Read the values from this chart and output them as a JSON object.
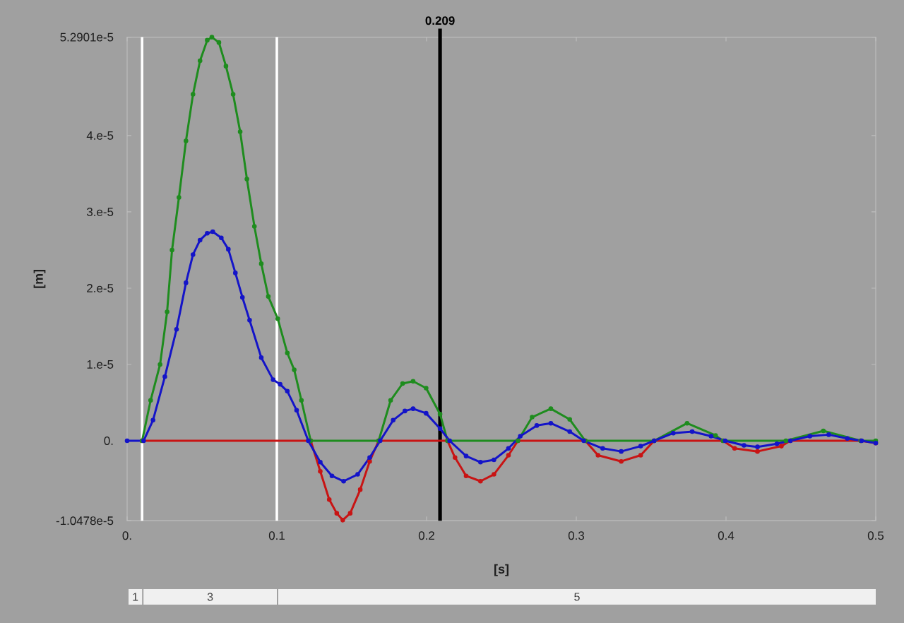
{
  "chart_data": {
    "type": "line",
    "xlabel": "[s]",
    "ylabel": "[m]",
    "xlim": [
      0,
      0.5
    ],
    "ylim": [
      -1.0478e-05,
      5.2901e-05
    ],
    "xticks": [
      {
        "value": 0,
        "label": "0."
      },
      0.1,
      0.2,
      0.3,
      0.4,
      0.5
    ],
    "yticks": [
      {
        "value": -1.0478e-05,
        "label": "-1.0478e-5"
      },
      {
        "value": 0,
        "label": "0."
      },
      {
        "value": 1e-05,
        "label": "1.e-5"
      },
      {
        "value": 2e-05,
        "label": "2.e-5"
      },
      {
        "value": 3e-05,
        "label": "3.e-5"
      },
      {
        "value": 4e-05,
        "label": "4.e-5"
      },
      {
        "value": 5.2901e-05,
        "label": "5.2901e-5"
      }
    ],
    "marker": "circle",
    "series": [
      {
        "color": "#c81414",
        "x": [
          0.01,
          0.1226,
          0.129,
          0.135,
          0.14,
          0.144,
          0.149,
          0.1557,
          0.162,
          0.168,
          0.214,
          0.219,
          0.2264,
          0.236,
          0.245,
          0.2547,
          0.261,
          0.306,
          0.3145,
          0.33,
          0.343,
          0.352,
          0.398,
          0.4057,
          0.421,
          0.437,
          0.443,
          0.49,
          0.5
        ],
        "values": [
          0,
          0,
          -4e-06,
          -7.7e-06,
          -9.5e-06,
          -1.04e-05,
          -9.5e-06,
          -6.4e-06,
          -2.7e-06,
          0,
          0,
          -2.2e-06,
          -4.6e-06,
          -5.3e-06,
          -4.4e-06,
          -1.9e-06,
          0,
          0,
          -1.9e-06,
          -2.7e-06,
          -1.9e-06,
          0,
          0,
          -1e-06,
          -1.4e-06,
          -7e-07,
          0,
          0,
          -3e-07
        ]
      },
      {
        "color": "#1e8c1e",
        "x": [
          0.01,
          0.0157,
          0.022,
          0.0267,
          0.03,
          0.0346,
          0.0393,
          0.044,
          0.0487,
          0.0535,
          0.0566,
          0.0613,
          0.066,
          0.0708,
          0.0755,
          0.08,
          0.085,
          0.0896,
          0.0943,
          0.1006,
          0.107,
          0.1116,
          0.1164,
          0.1226,
          0.168,
          0.176,
          0.184,
          0.191,
          0.1997,
          0.209,
          0.214,
          0.261,
          0.2705,
          0.283,
          0.2956,
          0.306,
          0.352,
          0.374,
          0.393,
          0.398,
          0.44,
          0.465,
          0.49,
          0.5
        ],
        "values": [
          0,
          5.3e-06,
          1e-05,
          1.69e-05,
          2.5e-05,
          3.19e-05,
          3.93e-05,
          4.54e-05,
          4.98e-05,
          5.25e-05,
          5.29e-05,
          5.22e-05,
          4.91e-05,
          4.54e-05,
          4.05e-05,
          3.43e-05,
          2.81e-05,
          2.32e-05,
          1.89e-05,
          1.6e-05,
          1.15e-05,
          9.3e-06,
          5.3e-06,
          0,
          0,
          5.3e-06,
          7.5e-06,
          7.8e-06,
          6.9e-06,
          3.5e-06,
          0,
          0,
          3.1e-06,
          4.2e-06,
          2.8e-06,
          0,
          0,
          2.3e-06,
          7e-07,
          0,
          0,
          1.3e-06,
          0,
          0
        ]
      },
      {
        "color": "#1414c8",
        "x": [
          0,
          0.011,
          0.0173,
          0.0252,
          0.033,
          0.0393,
          0.044,
          0.0487,
          0.0535,
          0.0572,
          0.0629,
          0.0676,
          0.0723,
          0.077,
          0.0818,
          0.0896,
          0.0975,
          0.1022,
          0.107,
          0.1132,
          0.121,
          0.129,
          0.1368,
          0.1446,
          0.154,
          0.162,
          0.169,
          0.1777,
          0.1855,
          0.191,
          0.1997,
          0.209,
          0.2154,
          0.2264,
          0.236,
          0.245,
          0.2547,
          0.2626,
          0.2736,
          0.283,
          0.2956,
          0.305,
          0.3176,
          0.33,
          0.343,
          0.352,
          0.3648,
          0.3774,
          0.39,
          0.3994,
          0.412,
          0.421,
          0.434,
          0.443,
          0.456,
          0.4686,
          0.481,
          0.4906,
          0.5
        ],
        "values": [
          0,
          0,
          2.7e-06,
          8.4e-06,
          1.46e-05,
          2.07e-05,
          2.44e-05,
          2.63e-05,
          2.72e-05,
          2.74e-05,
          2.66e-05,
          2.51e-05,
          2.2e-05,
          1.88e-05,
          1.58e-05,
          1.09e-05,
          8e-06,
          7.4e-06,
          6.5e-06,
          4e-06,
          0,
          -2.8e-06,
          -4.6e-06,
          -5.3e-06,
          -4.4e-06,
          -2.2e-06,
          0,
          2.7e-06,
          3.9e-06,
          4.2e-06,
          3.6e-06,
          1.6e-06,
          0,
          -2e-06,
          -2.8e-06,
          -2.5e-06,
          -1e-06,
          6e-07,
          2e-06,
          2.3e-06,
          1.2e-06,
          0,
          -1e-06,
          -1.4e-06,
          -7e-07,
          0,
          1e-06,
          1.2e-06,
          6e-07,
          0,
          -6e-07,
          -8e-07,
          -4e-07,
          0,
          6e-07,
          8e-07,
          3e-07,
          0,
          -3e-07
        ]
      }
    ],
    "ref_lines": [
      {
        "axis": "x",
        "value": 0.01,
        "color": "#ffffff"
      },
      {
        "axis": "x",
        "value": 0.1,
        "color": "#ffffff"
      },
      {
        "axis": "x",
        "value": 0.209,
        "label": "0.209",
        "color": "#000000"
      }
    ],
    "annotations": [
      "1",
      "3",
      "5"
    ]
  }
}
